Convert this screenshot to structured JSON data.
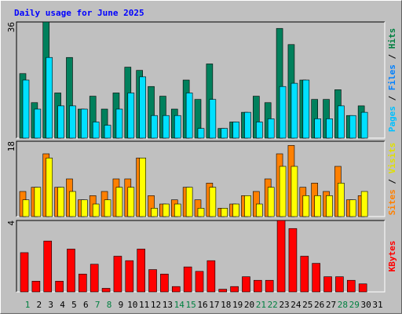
{
  "chart_data": {
    "type": "bar",
    "title": "Daily usage for June 2025",
    "categories": [
      "1",
      "2",
      "3",
      "4",
      "5",
      "6",
      "7",
      "8",
      "9",
      "10",
      "11",
      "12",
      "13",
      "14",
      "15",
      "16",
      "17",
      "18",
      "19",
      "20",
      "21",
      "22",
      "23",
      "24",
      "25",
      "26",
      "27",
      "28",
      "29",
      "30",
      "31"
    ],
    "category_colors": [
      "#008040",
      "#000000",
      "#000000",
      "#000000",
      "#000000",
      "#000000",
      "#008040",
      "#008040",
      "#000000",
      "#000000",
      "#000000",
      "#000000",
      "#000000",
      "#008040",
      "#008040",
      "#000000",
      "#000000",
      "#000000",
      "#000000",
      "#000000",
      "#008040",
      "#008040",
      "#000000",
      "#000000",
      "#000000",
      "#000000",
      "#000000",
      "#008040",
      "#008040",
      "#000000",
      "#000000"
    ],
    "panels": [
      {
        "ylim": [
          0,
          36
        ],
        "yticks": [
          36
        ],
        "y_label": [
          {
            "text": "Pages",
            "color": "#00c0ff"
          },
          {
            "text": "/",
            "color": "#000000"
          },
          {
            "text": "Files",
            "color": "#0080ff"
          },
          {
            "text": "/",
            "color": "#000000"
          },
          {
            "text": "Hits",
            "color": "#008040"
          }
        ],
        "series": [
          {
            "name": "Hits",
            "color": "#00805c",
            "values": [
              20,
              11,
              36,
              14,
              25,
              9,
              13,
              9,
              14,
              22,
              21,
              16,
              13,
              9,
              18,
              12,
              23,
              3,
              5,
              8,
              13,
              11,
              34,
              29,
              18,
              12,
              12,
              15,
              7,
              10,
              0
            ]
          },
          {
            "name": "Files",
            "color": "#00e0ff",
            "values": [
              18,
              9,
              25,
              10,
              10,
              9,
              5,
              4,
              9,
              14,
              19,
              7,
              7,
              7,
              14,
              3,
              12,
              3,
              5,
              8,
              5,
              6,
              16,
              17,
              18,
              6,
              6,
              10,
              7,
              8,
              0
            ]
          }
        ]
      },
      {
        "ylim": [
          0,
          18
        ],
        "yticks": [
          18
        ],
        "y_label": [
          {
            "text": "Sites",
            "color": "#ff8000"
          },
          {
            "text": "/",
            "color": "#000000"
          },
          {
            "text": "Visits",
            "color": "#e0e000"
          }
        ],
        "series": [
          {
            "name": "Sites",
            "color": "#ff8000",
            "values": [
              6,
              7,
              15,
              7,
              9,
              4,
              5,
              6,
              9,
              9,
              14,
              5,
              3,
              4,
              7,
              4,
              8,
              2,
              3,
              5,
              6,
              9,
              15,
              17,
              7,
              8,
              6,
              12,
              4,
              5,
              0
            ]
          },
          {
            "name": "Visits",
            "color": "#ffff00",
            "values": [
              4,
              7,
              14,
              7,
              6,
              4,
              3,
              4,
              7,
              7,
              14,
              2,
              3,
              3,
              7,
              2,
              7,
              2,
              3,
              5,
              3,
              7,
              12,
              12,
              5,
              5,
              5,
              8,
              4,
              6,
              0
            ]
          }
        ]
      },
      {
        "ylim": [
          0,
          4
        ],
        "yticks": [
          4
        ],
        "y_label": [
          {
            "text": "KBytes",
            "color": "#ff0000"
          }
        ],
        "series": [
          {
            "name": "KBytes",
            "color": "#ff0000",
            "values": [
              2.2,
              0.6,
              2.85,
              0.6,
              2.4,
              1.0,
              1.55,
              0.2,
              2.0,
              1.75,
              2.4,
              1.25,
              1.0,
              0.3,
              1.4,
              1.15,
              1.75,
              0.15,
              0.3,
              0.85,
              0.65,
              0.65,
              4.0,
              3.55,
              2.0,
              1.6,
              0.85,
              0.85,
              0.65,
              0.45,
              0
            ]
          }
        ]
      }
    ]
  }
}
